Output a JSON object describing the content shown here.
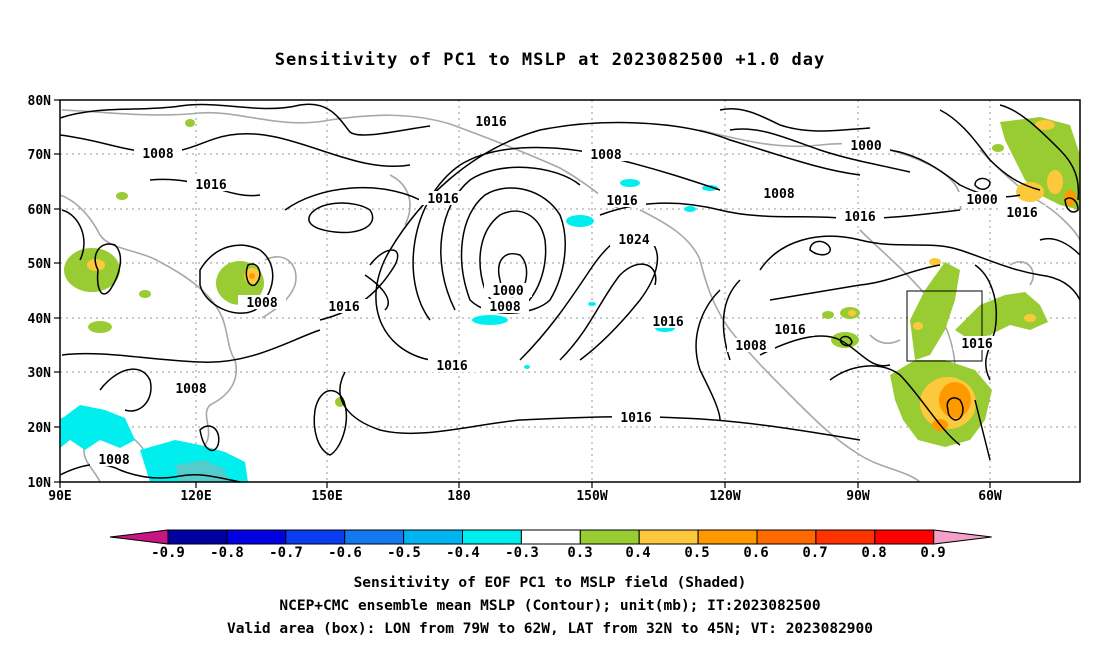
{
  "title": "Sensitivity of PC1 to MSLP at 2023082500 +1.0 day",
  "map": {
    "lon_labels": [
      "90E",
      "120E",
      "150E",
      "180",
      "150W",
      "120W",
      "90W",
      "60W"
    ],
    "lat_labels": [
      "80N",
      "70N",
      "60N",
      "50N",
      "40N",
      "30N",
      "20N",
      "10N"
    ],
    "contour_labels": [
      "1016",
      "1008",
      "1016",
      "1016",
      "1008",
      "1016",
      "1000",
      "1008",
      "1008",
      "1000",
      "1008",
      "1000",
      "1016",
      "1016",
      "1024",
      "1016",
      "1008",
      "1008",
      "1016",
      "1016",
      "1016",
      "1008",
      "1008",
      "1016",
      "1016"
    ],
    "valid_box": {
      "lon_from": "79W",
      "lon_to": "62W",
      "lat_from": "32N",
      "lat_to": "45N"
    }
  },
  "colorbar": {
    "labels": [
      "-0.9",
      "-0.8",
      "-0.7",
      "-0.6",
      "-0.5",
      "-0.4",
      "-0.3",
      "0.3",
      "0.4",
      "0.5",
      "0.6",
      "0.7",
      "0.8",
      "0.9"
    ],
    "colors": [
      "#c71585",
      "#0000a0",
      "#0000e0",
      "#0a3cf0",
      "#1478f0",
      "#00b4f0",
      "#00eeee",
      "#ffffff",
      "#99cc33",
      "#fcc93c",
      "#ff9900",
      "#ff6a00",
      "#ff3300",
      "#ff0000",
      "#f5a0c8"
    ]
  },
  "captions": {
    "line1": "Sensitivity of EOF PC1 to MSLP field (Shaded)",
    "line2": "NCEP+CMC ensemble mean MSLP (Contour); unit(mb); IT:2023082500",
    "line3": "Valid area (box): LON from 79W to 62W, LAT from 32N to 45N; VT: 2023082900"
  }
}
